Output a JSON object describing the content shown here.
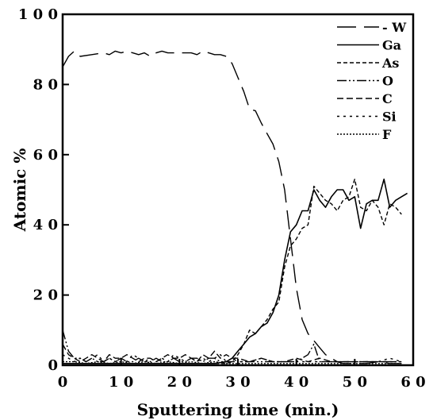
{
  "chart_data": {
    "type": "line",
    "xlabel": "Sputtering time (min.)",
    "ylabel": "Atomic %",
    "xlim": [
      0,
      60
    ],
    "ylim": [
      0,
      100
    ],
    "xticks": [
      "0",
      "1 0",
      "2 0",
      "3 0",
      "4 0",
      "5 0",
      "6 0"
    ],
    "yticks": [
      "0",
      "2 0",
      "4 0",
      "6 0",
      "8 0",
      "1 0 0"
    ],
    "grid": false,
    "legend_position": "top-right",
    "legend": [
      "- W",
      "Ga",
      "As",
      "O",
      "C",
      "Si",
      "F"
    ],
    "series": [
      {
        "name": "W",
        "style": "longdash",
        "x": [
          0,
          1,
          2,
          3,
          5,
          7,
          8,
          9,
          10,
          11,
          12,
          13,
          14,
          15,
          16,
          17,
          18,
          20,
          22,
          23,
          24,
          25,
          26,
          27,
          28,
          29,
          30,
          31,
          32,
          33,
          34,
          35,
          36,
          37,
          38,
          39,
          40,
          41,
          42,
          43,
          44,
          45,
          46,
          47,
          48,
          50,
          52,
          54,
          56,
          58
        ],
        "y": [
          85,
          88,
          89.5,
          88,
          88.5,
          89,
          88.5,
          89.5,
          89,
          89.5,
          89,
          88.5,
          89,
          88,
          89,
          89.5,
          89,
          89,
          89,
          88.5,
          89.5,
          89,
          88.5,
          88.5,
          88,
          86,
          82,
          78,
          73,
          72.5,
          69,
          66,
          63,
          58,
          50,
          36,
          22,
          13,
          9,
          7,
          5,
          3,
          2,
          1,
          0.5,
          0.5,
          0.5,
          1,
          0.5,
          0.5
        ]
      },
      {
        "name": "Ga",
        "style": "solid",
        "x": [
          0,
          2,
          4,
          6,
          8,
          10,
          12,
          14,
          16,
          18,
          20,
          22,
          24,
          26,
          28,
          29,
          30,
          31,
          32,
          33,
          34,
          35,
          36,
          37,
          38,
          39,
          40,
          41,
          42,
          43,
          44,
          45,
          46,
          47,
          48,
          49,
          50,
          51,
          52,
          53,
          54,
          55,
          56,
          57,
          58,
          59
        ],
        "y": [
          0.5,
          0.5,
          0.5,
          0.5,
          0.5,
          0.5,
          0.5,
          0.5,
          0.5,
          0.5,
          0.5,
          0.5,
          0.5,
          0.5,
          1,
          2,
          4,
          6,
          8,
          9,
          11,
          12,
          15,
          20,
          30,
          38,
          40,
          44,
          44,
          50,
          47,
          45,
          48,
          50,
          50,
          47,
          48,
          39,
          46,
          47,
          47,
          53,
          45,
          47,
          48,
          49
        ]
      },
      {
        "name": "As",
        "style": "shortdash",
        "x": [
          0,
          2,
          4,
          6,
          8,
          10,
          12,
          14,
          16,
          18,
          20,
          22,
          24,
          26,
          28,
          29,
          30,
          31,
          32,
          33,
          34,
          35,
          36,
          37,
          38,
          39,
          40,
          41,
          42,
          43,
          44,
          45,
          46,
          47,
          48,
          49,
          50,
          51,
          52,
          53,
          54,
          55,
          56,
          57,
          58
        ],
        "y": [
          0.5,
          0.5,
          0.5,
          0.5,
          0.5,
          0.5,
          0.5,
          0.5,
          0.5,
          0.5,
          0.5,
          0.5,
          0.5,
          0.5,
          0.5,
          1,
          3,
          6,
          10,
          9,
          11,
          13,
          16,
          18,
          28,
          34,
          36,
          39,
          40,
          51,
          49,
          47,
          46,
          44,
          47,
          48,
          53,
          45,
          44,
          47,
          45,
          40,
          46,
          45,
          43
        ]
      },
      {
        "name": "O",
        "style": "dashdotdot",
        "x": [
          0,
          1,
          2,
          3,
          4,
          5,
          6,
          7,
          8,
          9,
          10,
          11,
          12,
          13,
          14,
          15,
          16,
          17,
          18,
          19,
          20,
          21,
          22,
          23,
          24,
          25,
          26,
          27,
          28,
          29,
          30,
          32,
          34,
          36,
          38,
          40,
          42,
          43,
          44,
          46,
          48,
          50,
          52,
          54,
          56,
          58
        ],
        "y": [
          10,
          4,
          2,
          2,
          1,
          2,
          1,
          1,
          2,
          1,
          2,
          1,
          1,
          2,
          1,
          1,
          2,
          1,
          1,
          2,
          1,
          1,
          2,
          2,
          1,
          2,
          2,
          1,
          1,
          1,
          1,
          1,
          1,
          1,
          1,
          1,
          3,
          6,
          1,
          1,
          1,
          1,
          1,
          1,
          1,
          1
        ]
      },
      {
        "name": "C",
        "style": "mediumdash",
        "x": [
          0,
          1,
          2,
          3,
          4,
          5,
          6,
          7,
          8,
          9,
          10,
          11,
          12,
          13,
          14,
          15,
          16,
          17,
          18,
          19,
          20,
          21,
          22,
          23,
          24,
          25,
          26,
          27,
          28,
          29,
          30,
          32,
          34,
          36,
          38,
          40,
          42,
          44,
          46,
          48,
          50,
          52,
          54,
          56,
          58
        ],
        "y": [
          6,
          3,
          2,
          1,
          2,
          3,
          2,
          1,
          3,
          2,
          2,
          3,
          2,
          1,
          2,
          2,
          1,
          2,
          3,
          2,
          2,
          3,
          2,
          1,
          3,
          2,
          4,
          2,
          3,
          2,
          2,
          1,
          2,
          1,
          1,
          2,
          1,
          2,
          1,
          1,
          1,
          1,
          1,
          1,
          1
        ]
      },
      {
        "name": "Si",
        "style": "dotted",
        "x": [
          0,
          1,
          2,
          3,
          4,
          5,
          6,
          7,
          8,
          9,
          10,
          11,
          12,
          13,
          14,
          15,
          16,
          17,
          18,
          19,
          20,
          21,
          22,
          23,
          24,
          25,
          26,
          27,
          28,
          29,
          30,
          32,
          34,
          36,
          38,
          40,
          42,
          44,
          46,
          48,
          50,
          52,
          54,
          56,
          58
        ],
        "y": [
          3,
          2,
          1,
          2,
          1,
          2,
          3,
          1,
          2,
          1,
          2,
          1,
          3,
          2,
          1,
          2,
          1,
          2,
          1,
          3,
          2,
          1,
          2,
          1,
          2,
          1,
          2,
          3,
          1,
          2,
          1,
          1,
          2,
          1,
          1,
          1,
          1,
          1,
          1,
          1,
          1,
          1,
          1,
          2,
          1
        ]
      },
      {
        "name": "F",
        "style": "finedot",
        "x": [
          0,
          2,
          4,
          6,
          8,
          10,
          12,
          14,
          16,
          18,
          20,
          22,
          24,
          26,
          28,
          30,
          32,
          34,
          36,
          38,
          40,
          42,
          44,
          46,
          48,
          50,
          52,
          54,
          56,
          58
        ],
        "y": [
          1,
          1,
          0.5,
          1,
          0.5,
          1,
          0.5,
          1,
          0.5,
          1,
          0.5,
          1,
          0.5,
          1,
          0.5,
          0.5,
          0.5,
          0.5,
          0.5,
          0.5,
          0.5,
          0.5,
          0.5,
          0.5,
          0.5,
          0.5,
          0.5,
          0.5,
          0.5,
          0.5
        ]
      }
    ]
  }
}
